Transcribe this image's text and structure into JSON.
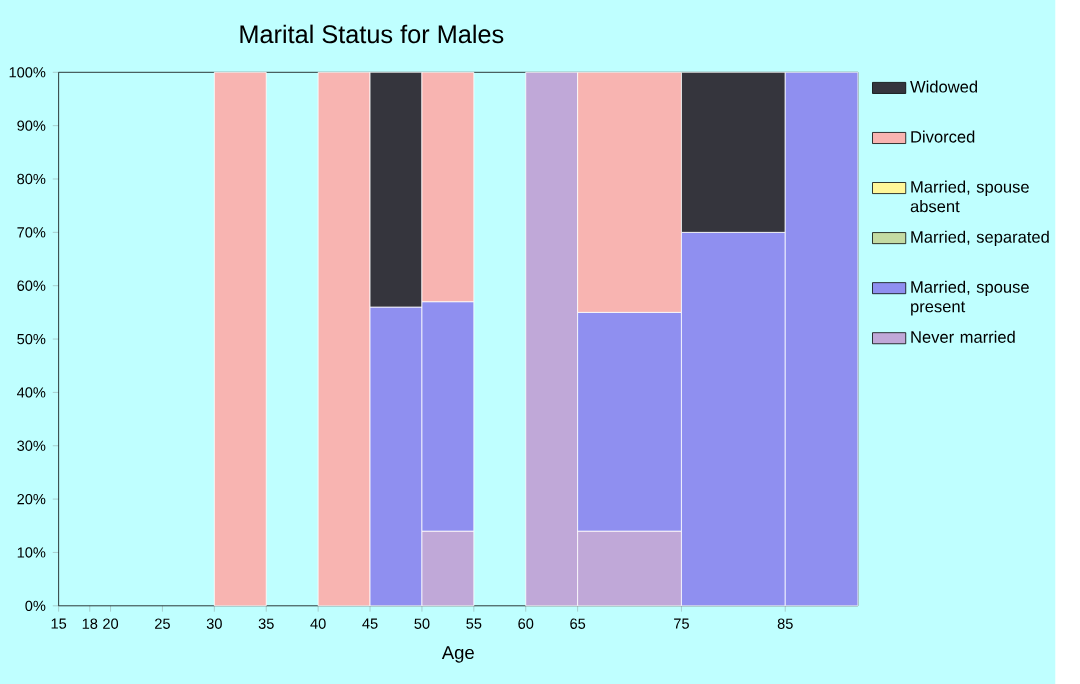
{
  "chart_data": {
    "type": "bar",
    "stacked": true,
    "title": "Marital Status for Males",
    "xlabel": "Age",
    "x": [
      32.5,
      37.5,
      42.5,
      47.5,
      52.5,
      57.5,
      62.5,
      70,
      80,
      88.5
    ],
    "xlim": [
      15,
      92
    ],
    "xticks": [
      15,
      18,
      20,
      25,
      30,
      35,
      40,
      45,
      50,
      55,
      60,
      65,
      75,
      85
    ],
    "ylim": [
      0,
      100
    ],
    "yticks": [
      {
        "value": 0,
        "label": "0%"
      },
      {
        "value": 10,
        "label": "10%"
      },
      {
        "value": 20,
        "label": "20%"
      },
      {
        "value": 30,
        "label": "30%"
      },
      {
        "value": 40,
        "label": "40%"
      },
      {
        "value": 50,
        "label": "50%"
      },
      {
        "value": 60,
        "label": "60%"
      },
      {
        "value": 70,
        "label": "70%"
      },
      {
        "value": 80,
        "label": "80%"
      },
      {
        "value": 90,
        "label": "90%"
      },
      {
        "value": 100,
        "label": "100%"
      }
    ],
    "grid": false,
    "legend": "right",
    "series": [
      {
        "name": "Never married",
        "color": "#c0a8d8",
        "values": [
          0,
          null,
          0,
          0,
          14,
          null,
          100,
          14,
          0,
          0
        ]
      },
      {
        "name": "Married, spouse present",
        "color": "#8f8ff0",
        "values": [
          0,
          null,
          0,
          56,
          43,
          null,
          0,
          41,
          70,
          100
        ]
      },
      {
        "name": "Married, separated",
        "color": "#c4dba3",
        "values": [
          0,
          null,
          0,
          0,
          0,
          null,
          0,
          0,
          0,
          0
        ]
      },
      {
        "name": "Married, spouse absent",
        "color": "#fff799",
        "values": [
          0,
          null,
          0,
          0,
          0,
          null,
          0,
          0,
          0,
          0
        ]
      },
      {
        "name": "Divorced",
        "color": "#f8b4b1",
        "values": [
          100,
          null,
          100,
          0,
          43,
          null,
          0,
          45,
          0,
          0
        ]
      },
      {
        "name": "Widowed",
        "color": "#35353d",
        "values": [
          0,
          null,
          0,
          44,
          0,
          null,
          0,
          0,
          30,
          0
        ]
      }
    ]
  }
}
